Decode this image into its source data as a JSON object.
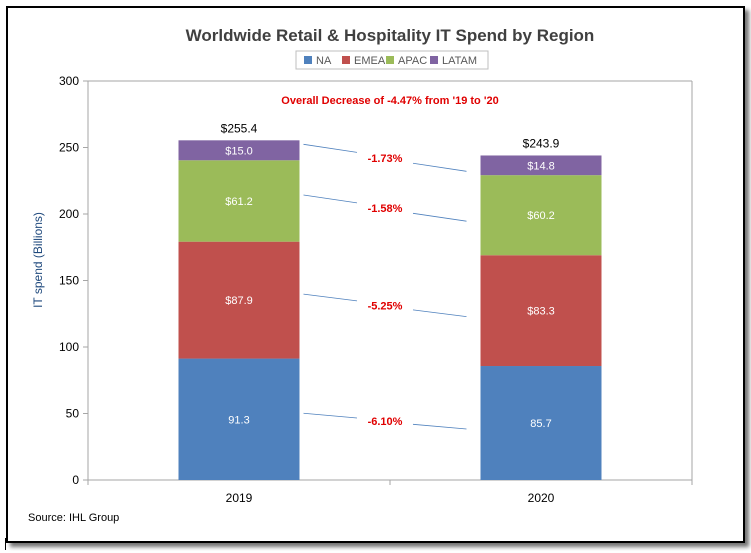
{
  "chart_data": {
    "type": "bar",
    "stacked": true,
    "title": "Worldwide Retail & Hospitality IT Spend by Region",
    "ylabel": "IT spend (Billions)",
    "xlabel": "",
    "ylim": [
      0,
      300
    ],
    "yticks": [
      "0",
      "50",
      "100",
      "150",
      "200",
      "250",
      "300"
    ],
    "categories": [
      "2019",
      "2020"
    ],
    "legend_position": "top",
    "grid": false,
    "series": [
      {
        "name": "NA",
        "color": "#4F81BD",
        "values": [
          91.3,
          85.7
        ],
        "labels": [
          "91.3",
          "85.7"
        ]
      },
      {
        "name": "EMEA",
        "color": "#C0504D",
        "values": [
          87.9,
          83.3
        ],
        "labels": [
          "$87.9",
          "$83.3"
        ]
      },
      {
        "name": "APAC",
        "color": "#9BBB59",
        "values": [
          61.2,
          60.2
        ],
        "labels": [
          "$61.2",
          "$60.2"
        ]
      },
      {
        "name": "LATAM",
        "color": "#8064A2",
        "values": [
          15.0,
          14.8
        ],
        "labels": [
          "$15.0",
          "$14.8"
        ]
      }
    ],
    "totals": [
      "$255.4",
      "$243.9"
    ],
    "change_labels": [
      "-6.10%",
      "-5.25%",
      "-1.58%",
      "-1.73%"
    ],
    "annotation": "Overall Decrease of -4.47% from '19 to '20",
    "source": "Source: IHL Group",
    "colors": {
      "accent_red": "#E00000",
      "axis": "#A6A6A6",
      "title": "#404040"
    }
  }
}
